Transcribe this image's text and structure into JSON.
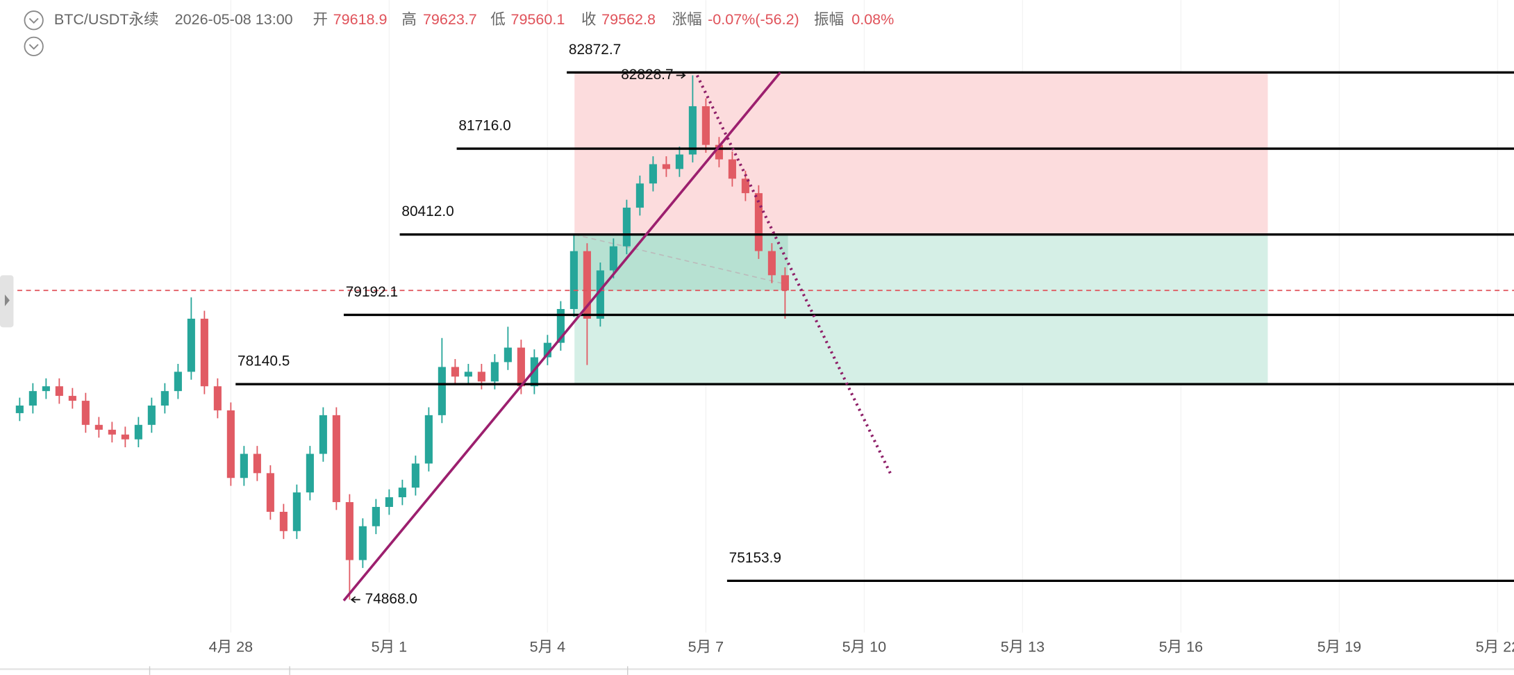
{
  "chart_data": {
    "type": "candlestick",
    "symbol": "BTC/USDT永续",
    "time": "2026-05-08 13:00",
    "info": [
      {
        "label": "开",
        "text": "79618.9"
      },
      {
        "label": "高",
        "text": "79623.7"
      },
      {
        "label": "低",
        "text": "79560.1"
      },
      {
        "label": "收",
        "text": "79562.8"
      },
      {
        "label": "涨幅",
        "text": "-0.07%(-56.2)"
      },
      {
        "label": "振幅",
        "text": "0.08%"
      }
    ],
    "xlim": [
      -6.19,
      22.31
    ],
    "ylim": [
      74370,
      83972
    ],
    "xticks": [
      {
        "value": -2,
        "label": "4月 28"
      },
      {
        "value": 1,
        "label": "5月 1"
      },
      {
        "value": 4,
        "label": "5月 4"
      },
      {
        "value": 7,
        "label": "5月 7"
      },
      {
        "value": 10,
        "label": "5月 10"
      },
      {
        "value": 13,
        "label": "5月 13"
      },
      {
        "value": 16,
        "label": "5月 16"
      },
      {
        "value": 19,
        "label": "5月 19"
      },
      {
        "value": 22,
        "label": "5月 22"
      }
    ],
    "up_color": "#26a69a",
    "down_color": "#e15b64",
    "series": [
      {
        "x": [
          -6,
          -5.75,
          -5.5,
          -5.25,
          -5,
          -4.75,
          -4.5,
          -4.25,
          -4,
          -3.75,
          -3.5,
          -3.25,
          -3,
          -2.75,
          -2.5,
          -2.25,
          -2,
          -1.75,
          -1.5,
          -1.25,
          -1,
          -0.75,
          -0.5,
          -0.25,
          0,
          0.25,
          0.5,
          0.75,
          1,
          1.25,
          1.5,
          1.75,
          2,
          2.25,
          2.5,
          2.75,
          3,
          3.25,
          3.5,
          3.75,
          4,
          4.25,
          4.5,
          4.75,
          5,
          5.25,
          5.5,
          5.75,
          6,
          6.25,
          6.5,
          6.75,
          7,
          7.25,
          7.5,
          7.75,
          8,
          8.25,
          8.5
        ],
        "open": [
          77700,
          77815,
          78035,
          78108,
          77962,
          77888,
          77522,
          77448,
          77375,
          77302,
          77522,
          77815,
          78035,
          78328,
          79134,
          78108,
          77742,
          76716,
          77082,
          76789,
          76202,
          75909,
          76496,
          77082,
          77669,
          76349,
          75469,
          75983,
          76276,
          76423,
          76569,
          76935,
          77669,
          78401,
          78255,
          78328,
          78181,
          78475,
          78695,
          78108,
          78548,
          78768,
          79281,
          80160,
          79134,
          79867,
          80233,
          80820,
          81187,
          81480,
          81407,
          81627,
          82360,
          81773,
          81553,
          81260,
          81040,
          80161,
          79794
        ],
        "high": [
          77935,
          78155,
          78228,
          78228,
          78082,
          78008,
          77642,
          77568,
          77495,
          77642,
          77935,
          78155,
          78448,
          79457,
          79254,
          78228,
          77862,
          77202,
          77202,
          76909,
          76322,
          76616,
          77202,
          77789,
          77789,
          76469,
          76103,
          76396,
          76543,
          76689,
          77055,
          77789,
          78840,
          78521,
          78448,
          78448,
          78595,
          79012,
          78815,
          78668,
          78888,
          79401,
          80412,
          80280,
          79987,
          80353,
          80940,
          81307,
          81600,
          81600,
          81747,
          82828.7,
          82480,
          81893,
          81673,
          81380,
          81160,
          80281,
          79914
        ],
        "low": [
          77580,
          77695,
          77915,
          77842,
          77768,
          77402,
          77328,
          77255,
          77182,
          77182,
          77402,
          77695,
          77915,
          78208,
          77988,
          77622,
          76596,
          76596,
          76669,
          76082,
          75789,
          75789,
          76376,
          76962,
          76229,
          74868.0,
          75349,
          75863,
          76156,
          76303,
          76449,
          76815,
          77549,
          78135,
          78135,
          78061,
          78061,
          78355,
          77988,
          77988,
          78428,
          78648,
          79161,
          78431,
          79014,
          79747,
          80113,
          80700,
          81067,
          81287,
          81287,
          81507,
          81653,
          81433,
          81140,
          80920,
          80041,
          79674,
          79135
        ],
        "close": [
          77815,
          78035,
          78108,
          77962,
          77888,
          77522,
          77448,
          77375,
          77302,
          77522,
          77815,
          78035,
          78328,
          79134,
          78108,
          77742,
          76716,
          77082,
          76789,
          76202,
          75909,
          76496,
          77082,
          77669,
          76349,
          75469,
          75983,
          76276,
          76423,
          76569,
          76935,
          77669,
          78401,
          78255,
          78328,
          78181,
          78475,
          78695,
          78108,
          78548,
          78768,
          79281,
          80160,
          79134,
          79867,
          80233,
          80820,
          81187,
          81480,
          81407,
          81627,
          82360,
          81773,
          81553,
          81260,
          81040,
          80161,
          79794,
          79562.8
        ]
      }
    ],
    "high_label": "82828.7",
    "low_label": "74868.0",
    "levels": [
      {
        "value": 82872.7,
        "label": "82872.7"
      },
      {
        "value": 81716.0,
        "label": "81716.0"
      },
      {
        "value": 80412.0,
        "label": "80412.0"
      },
      {
        "value": 79192.1,
        "label": "79192.1"
      },
      {
        "value": 78140.5,
        "label": "78140.5"
      },
      {
        "value": 75153.9,
        "label": "75153.9"
      }
    ]
  }
}
